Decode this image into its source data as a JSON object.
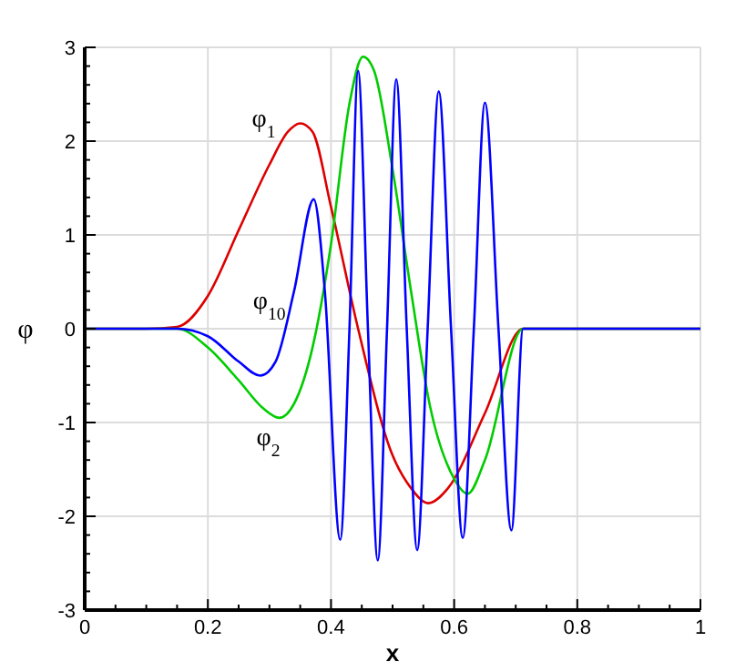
{
  "chart_data": {
    "type": "line",
    "xlabel": "x",
    "ylabel": "φ",
    "xlim": [
      0,
      1
    ],
    "ylim": [
      -3,
      3
    ],
    "xticks": [
      0,
      {
        "value": 0.05,
        "label": null
      },
      {
        "value": 0.1,
        "label": null
      },
      {
        "value": 0.15,
        "label": null
      },
      0.2,
      {
        "value": 0.25,
        "label": null
      },
      {
        "value": 0.3,
        "label": null
      },
      {
        "value": 0.35,
        "label": null
      },
      0.4,
      {
        "value": 0.45,
        "label": null
      },
      {
        "value": 0.5,
        "label": null
      },
      {
        "value": 0.55,
        "label": null
      },
      0.6,
      {
        "value": 0.65,
        "label": null
      },
      {
        "value": 0.7,
        "label": null
      },
      {
        "value": 0.75,
        "label": null
      },
      0.8,
      {
        "value": 0.85,
        "label": null
      },
      {
        "value": 0.9,
        "label": null
      },
      {
        "value": 0.95,
        "label": null
      },
      1
    ],
    "yticks": [
      -3,
      {
        "value": -2.8,
        "label": null
      },
      {
        "value": -2.6,
        "label": null
      },
      {
        "value": -2.4,
        "label": null
      },
      {
        "value": -2.2,
        "label": null
      },
      -2,
      {
        "value": -1.8,
        "label": null
      },
      {
        "value": -1.6,
        "label": null
      },
      {
        "value": -1.4,
        "label": null
      },
      {
        "value": -1.2,
        "label": null
      },
      -1,
      {
        "value": -0.8,
        "label": null
      },
      {
        "value": -0.6,
        "label": null
      },
      {
        "value": -0.4,
        "label": null
      },
      {
        "value": -0.2,
        "label": null
      },
      0,
      {
        "value": 0.2,
        "label": null
      },
      {
        "value": 0.4,
        "label": null
      },
      {
        "value": 0.6,
        "label": null
      },
      {
        "value": 0.8,
        "label": null
      },
      1,
      {
        "value": 1.2,
        "label": null
      },
      {
        "value": 1.4,
        "label": null
      },
      {
        "value": 1.6,
        "label": null
      },
      {
        "value": 1.8,
        "label": null
      },
      2,
      {
        "value": 2.2,
        "label": null
      },
      {
        "value": 2.4,
        "label": null
      },
      {
        "value": 2.6,
        "label": null
      },
      {
        "value": 2.8,
        "label": null
      },
      3
    ],
    "grid": true,
    "marker": "none",
    "line_style": "solid",
    "series": [
      {
        "name": "φ$_{1}$",
        "color": "#dd0000",
        "x": [
          0,
          0.1,
          0.15,
          0.2,
          0.25,
          0.3,
          0.33,
          0.35,
          0.37,
          0.4,
          0.444,
          0.5,
          0.53,
          0.558,
          0.59,
          0.65,
          0.712,
          1
        ],
        "values": [
          0,
          0,
          0.02,
          0.35,
          1.05,
          1.75,
          2.1,
          2.19,
          2.1,
          1.3,
          0,
          -1.35,
          -1.7,
          -1.86,
          -1.7,
          -0.9,
          0,
          0
        ]
      },
      {
        "name": "φ$_{2}$",
        "color": "#00cc00",
        "x": [
          0,
          0.15,
          0.2,
          0.25,
          0.29,
          0.316,
          0.34,
          0.37,
          0.4,
          0.43,
          0.452,
          0.47,
          0.5,
          0.53,
          0.56,
          0.6,
          0.622,
          0.65,
          0.712,
          1
        ],
        "values": [
          0,
          0,
          -0.2,
          -0.55,
          -0.85,
          -0.95,
          -0.8,
          -0.2,
          0.9,
          2.4,
          2.9,
          2.75,
          1.7,
          0.4,
          -0.8,
          -1.6,
          -1.76,
          -1.4,
          0,
          0
        ]
      },
      {
        "name": "φ$_{10}$",
        "color": "#0000ff",
        "x": [
          0,
          0.15,
          0.2,
          0.25,
          0.285,
          0.31,
          0.34,
          0.372,
          0.39,
          0.415,
          0.43,
          0.444,
          0.46,
          0.476,
          0.491,
          0.506,
          0.523,
          0.54,
          0.557,
          0.575,
          0.595,
          0.614,
          0.632,
          0.65,
          0.672,
          0.693,
          0.712,
          1
        ],
        "values": [
          0,
          0,
          -0.08,
          -0.35,
          -0.5,
          -0.35,
          0.4,
          1.38,
          0.4,
          -2.25,
          0,
          2.75,
          0,
          -2.47,
          0,
          2.66,
          0,
          -2.36,
          0,
          2.53,
          0,
          -2.23,
          0,
          2.41,
          0,
          -2.15,
          0,
          0
        ]
      }
    ]
  }
}
